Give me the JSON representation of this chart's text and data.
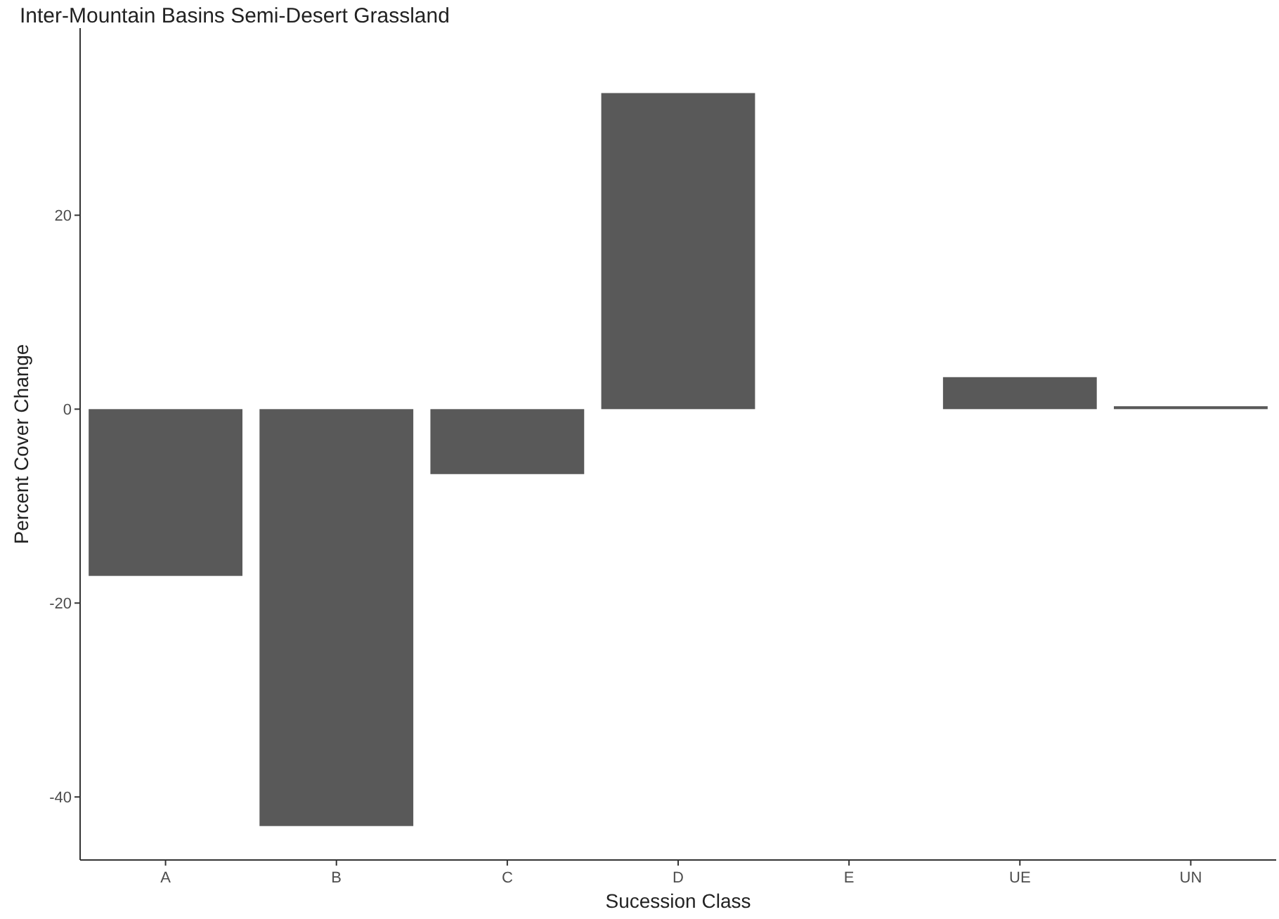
{
  "chart_data": {
    "type": "bar",
    "title": "Inter-Mountain Basins Semi-Desert Grassland",
    "xlabel": "Sucession Class",
    "ylabel": "Percent Cover Change",
    "categories": [
      "A",
      "B",
      "C",
      "D",
      "E",
      "UE",
      "UN"
    ],
    "values": [
      -17.2,
      -43.0,
      -6.7,
      32.6,
      0,
      3.3,
      0.3
    ],
    "color": "#595959",
    "ylim": [
      -46.5,
      39.3
    ],
    "yticks": [
      -40,
      -20,
      0,
      20
    ],
    "grid": false
  }
}
